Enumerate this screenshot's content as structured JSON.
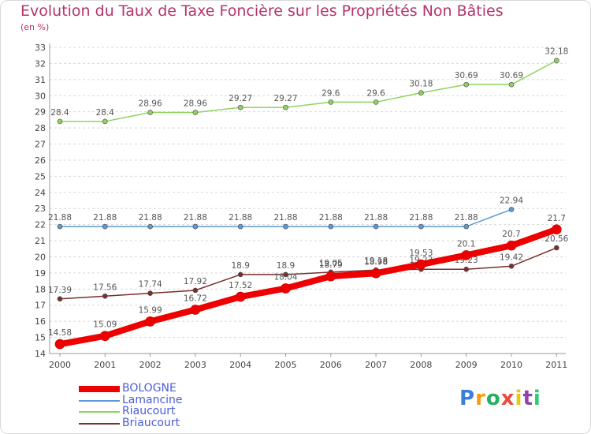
{
  "chart_data": {
    "type": "line",
    "title": "Evolution du Taux de Taxe Foncière sur les Propriétés Non Bâties",
    "unit_label": "(en %)",
    "x": [
      "2000",
      "2001",
      "2002",
      "2003",
      "2004",
      "2005",
      "2006",
      "2007",
      "2008",
      "2009",
      "2010",
      "2011"
    ],
    "ylim": [
      14,
      33
    ],
    "yticks": [
      14,
      15,
      16,
      17,
      18,
      19,
      20,
      21,
      22,
      23,
      24,
      25,
      26,
      27,
      28,
      29,
      30,
      31,
      32,
      33
    ],
    "series": [
      {
        "name": "Lamancine",
        "color": "#5b9bd5",
        "values": [
          21.88,
          21.88,
          21.88,
          21.88,
          21.88,
          21.88,
          21.88,
          21.88,
          21.88,
          21.88,
          22.94,
          null
        ],
        "labels": [
          "21.88",
          "21.88",
          "21.88",
          "21.88",
          "21.88",
          "21.88",
          "21.88",
          "21.88",
          "21.88",
          "21.88",
          "22.94",
          ""
        ]
      },
      {
        "name": "Riaucourt",
        "color": "#8fd35f",
        "values": [
          28.4,
          28.4,
          28.96,
          28.96,
          29.27,
          29.27,
          29.6,
          29.6,
          30.18,
          30.69,
          30.69,
          32.18
        ],
        "labels": [
          "28.4",
          "28.4",
          "28.96",
          "28.96",
          "29.27",
          "29.27",
          "29.6",
          "29.6",
          "30.18",
          "30.69",
          "30.69",
          "32.18"
        ]
      },
      {
        "name": "Briaucourt",
        "color": "#7a2e2e",
        "values": [
          17.39,
          17.56,
          17.74,
          17.92,
          18.9,
          18.9,
          19.05,
          19.18,
          19.23,
          19.23,
          19.42,
          20.56
        ],
        "labels": [
          "17.39",
          "17.56",
          "17.74",
          "17.92",
          "18.9",
          "18.9",
          "19.05",
          "19.18",
          "19.23",
          "19.23",
          "19.42",
          "20.56"
        ]
      },
      {
        "name": "BOLOGNE",
        "color": "#ee0000",
        "values": [
          14.58,
          15.09,
          15.99,
          16.72,
          17.52,
          18.04,
          18.79,
          18.98,
          19.53,
          20.1,
          20.7,
          21.7
        ],
        "labels": [
          "14.58",
          "15.09",
          "15.99",
          "16.72",
          "17.52",
          "18.04",
          "18.79",
          "18.98",
          "19.53",
          "20.1",
          "20.7",
          "21.7"
        ]
      }
    ],
    "legend": [
      "BOLOGNE",
      "Lamancine",
      "Riaucourt",
      "Briaucourt"
    ]
  },
  "brand": {
    "letters": [
      "P",
      "r",
      "o",
      "x",
      "i",
      "t",
      "i"
    ],
    "colors": [
      "#3b7fd9",
      "#f39c12",
      "#27ae60",
      "#e74c3c",
      "#f1c40f",
      "#8e44ad",
      "#2ecc71"
    ]
  }
}
